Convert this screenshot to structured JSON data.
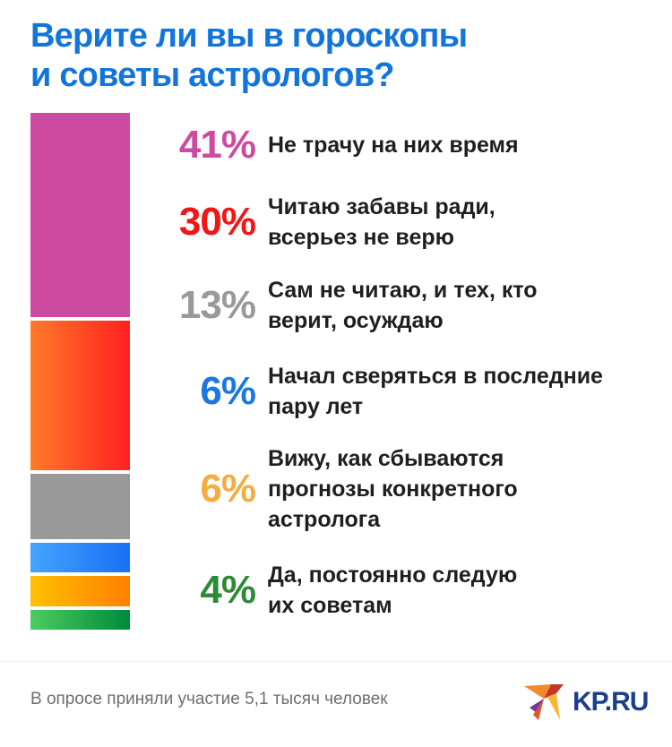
{
  "title_line1": "Верите ли вы в гороскопы",
  "title_line2": "и советы астрологов?",
  "chart_data": {
    "type": "bar",
    "subtype": "stacked-100",
    "title": "Верите ли вы в гороскопы и советы астрологов?",
    "categories": [
      "Не трачу на них время",
      "Читаю забавы ради, всерьез не верю",
      "Сам не читаю, и тех, кто верит, осуждаю",
      "Начал сверяться в последние пару лет",
      "Вижу, как сбываются прогнозы конкретного астролога",
      "Да, постоянно следую их советам"
    ],
    "values": [
      41,
      30,
      13,
      6,
      6,
      4
    ],
    "labels": [
      "41%",
      "30%",
      "13%",
      "6%",
      "6%",
      "4%"
    ],
    "label_lines": [
      [
        "Не трачу на них время"
      ],
      [
        "Читаю забавы ради,",
        "всерьез не верю"
      ],
      [
        "Сам не читаю, и тех, кто",
        "верит, осуждаю"
      ],
      [
        "Начал сверяться в последние",
        "пару лет"
      ],
      [
        "Вижу, как сбываются",
        "прогнозы конкретного",
        "астролога"
      ],
      [
        "Да, постоянно следую",
        "их советам"
      ]
    ],
    "colors": [
      "#cc4ba1",
      "#f41414",
      "#999999",
      "#1a78e0",
      "#f5ac42",
      "#2d8a35"
    ],
    "bar_gradients": [
      [
        "#cc4ba1",
        "#cc4ba1"
      ],
      [
        "#ff7a2a",
        "#ff2020"
      ],
      [
        "#999999",
        "#999999"
      ],
      [
        "#45a3ff",
        "#1a70f5"
      ],
      [
        "#ffc000",
        "#ff8000"
      ],
      [
        "#4ccc60",
        "#008a3a"
      ]
    ],
    "unit": "%"
  },
  "footer": "В опросе приняли участие 5,1 тысяч человек",
  "logo": "KP.RU"
}
